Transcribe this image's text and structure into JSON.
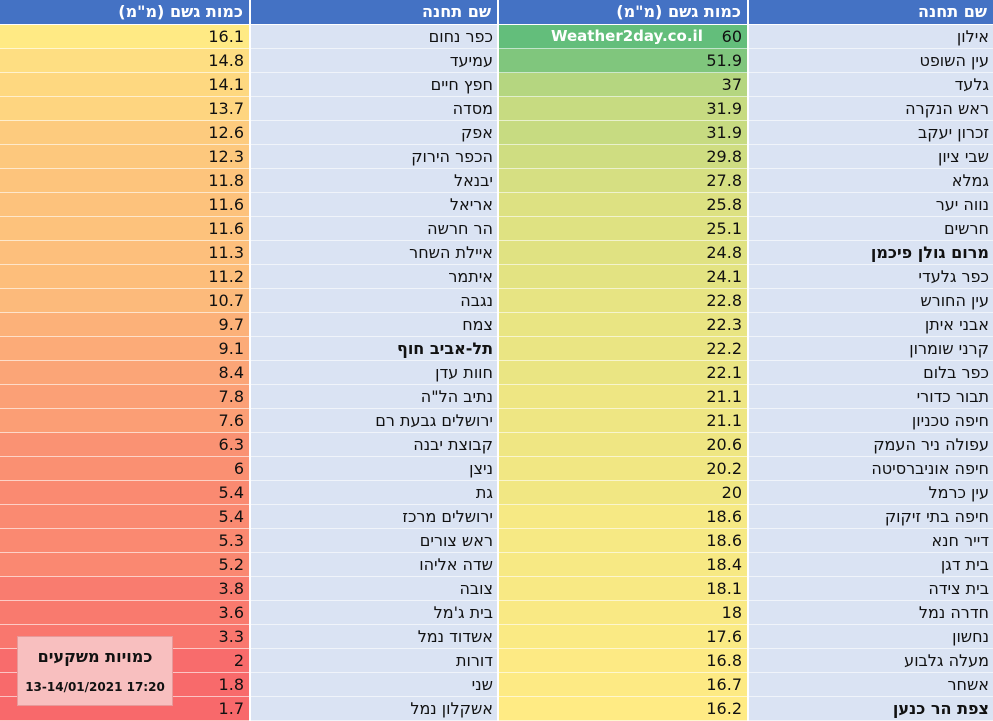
{
  "headers": {
    "left_amount": "כמות גשם (מ\"מ)",
    "left_station": "שם תחנה",
    "right_amount": "כמות גשם (מ\"מ)",
    "right_station": "שם תחנה"
  },
  "watermark": "Weather2day.co.il",
  "legend": {
    "title": "כמויות משקעים",
    "date": "13-14/01/2021 17:20"
  },
  "colors": {
    "header_bg": "#4472c4",
    "name_bg": "#dae3f3",
    "scale_low": "#f8696b",
    "scale_mid": "#ffeb84",
    "scale_high": "#63be7b"
  },
  "right_table": [
    {
      "station": "אילון",
      "amount": "60"
    },
    {
      "station": "עין השופט",
      "amount": "51.9"
    },
    {
      "station": "גלעד",
      "amount": "37"
    },
    {
      "station": "ראש הנקרה",
      "amount": "31.9"
    },
    {
      "station": "זכרון יעקב",
      "amount": "31.9"
    },
    {
      "station": "שבי ציון",
      "amount": "29.8"
    },
    {
      "station": "גמלא",
      "amount": "27.8"
    },
    {
      "station": "נווה יער",
      "amount": "25.8"
    },
    {
      "station": "חרשים",
      "amount": "25.1"
    },
    {
      "station": "מרום גולן פיכמן",
      "amount": "24.8",
      "bold": true
    },
    {
      "station": "כפר גלעדי",
      "amount": "24.1"
    },
    {
      "station": "עין החורש",
      "amount": "22.8"
    },
    {
      "station": "אבני איתן",
      "amount": "22.3"
    },
    {
      "station": "קרני שומרון",
      "amount": "22.2"
    },
    {
      "station": "כפר בלום",
      "amount": "22.1"
    },
    {
      "station": "תבור כדורי",
      "amount": "21.1"
    },
    {
      "station": "חיפה טכניון",
      "amount": "21.1"
    },
    {
      "station": "עפולה ניר העמק",
      "amount": "20.6"
    },
    {
      "station": "חיפה אוניברסיטה",
      "amount": "20.2"
    },
    {
      "station": "עין כרמל",
      "amount": "20"
    },
    {
      "station": "חיפה בתי זיקוק",
      "amount": "18.6"
    },
    {
      "station": "דייר חנא",
      "amount": "18.6"
    },
    {
      "station": "בית דגן",
      "amount": "18.4"
    },
    {
      "station": "בית צידה",
      "amount": "18.1"
    },
    {
      "station": "חדרה נמל",
      "amount": "18"
    },
    {
      "station": "נחשון",
      "amount": "17.6"
    },
    {
      "station": "מעלה גלבוע",
      "amount": "16.8"
    },
    {
      "station": "אשחר",
      "amount": "16.7"
    },
    {
      "station": "צפת הר כנען",
      "amount": "16.2",
      "bold": true
    }
  ],
  "left_table": [
    {
      "station": "כפר נחום",
      "amount": "16.1"
    },
    {
      "station": "עמיעד",
      "amount": "14.8"
    },
    {
      "station": "חפץ חיים",
      "amount": "14.1"
    },
    {
      "station": "מסדה",
      "amount": "13.7"
    },
    {
      "station": "אפק",
      "amount": "12.6"
    },
    {
      "station": "הכפר הירוק",
      "amount": "12.3"
    },
    {
      "station": "יבנאל",
      "amount": "11.8"
    },
    {
      "station": "אריאל",
      "amount": "11.6"
    },
    {
      "station": "הר חרשה",
      "amount": "11.6"
    },
    {
      "station": "איילת השחר",
      "amount": "11.3"
    },
    {
      "station": "איתמר",
      "amount": "11.2"
    },
    {
      "station": "נגבה",
      "amount": "10.7"
    },
    {
      "station": "צמח",
      "amount": "9.7"
    },
    {
      "station": "תל-אביב חוף",
      "amount": "9.1",
      "bold": true
    },
    {
      "station": "חוות עדן",
      "amount": "8.4"
    },
    {
      "station": "נתיב הל\"ה",
      "amount": "7.8"
    },
    {
      "station": "ירושלים גבעת רם",
      "amount": "7.6"
    },
    {
      "station": "קבוצת יבנה",
      "amount": "6.3"
    },
    {
      "station": "ניצן",
      "amount": "6"
    },
    {
      "station": "גת",
      "amount": "5.4"
    },
    {
      "station": "ירושלים מרכז",
      "amount": "5.4"
    },
    {
      "station": "ראש צורים",
      "amount": "5.3"
    },
    {
      "station": "שדה אליהו",
      "amount": "5.2"
    },
    {
      "station": "צובה",
      "amount": "3.8"
    },
    {
      "station": "בית ג'מל",
      "amount": "3.6"
    },
    {
      "station": "אשדוד נמל",
      "amount": "3.3"
    },
    {
      "station": "דורות",
      "amount": "2"
    },
    {
      "station": "שני",
      "amount": "1.8"
    },
    {
      "station": "אשקלון נמל",
      "amount": "1.7"
    }
  ]
}
